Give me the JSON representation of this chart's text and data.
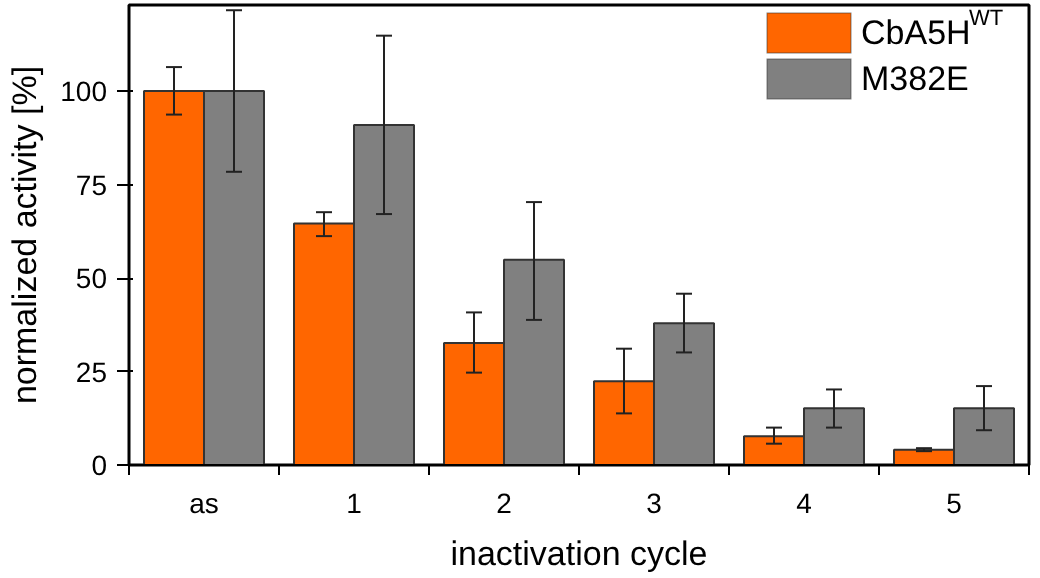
{
  "chart_data": {
    "type": "bar",
    "xlabel": "inactivation cycle",
    "ylabel": "normalized activity [%]",
    "categories": [
      "as",
      "1",
      "2",
      "3",
      "4",
      "5"
    ],
    "series": [
      {
        "name": "CbA5H$^{WT}$",
        "color": "#ff6600",
        "values": [
          100,
          64.6,
          32.6,
          22.4,
          7.7,
          4.1
        ],
        "errors": [
          [
            93.7,
            106.4
          ],
          [
            61.2,
            67.6
          ],
          [
            24.7,
            40.8
          ],
          [
            13.8,
            31.1
          ],
          [
            5.7,
            10.0
          ],
          [
            3.7,
            4.5
          ]
        ]
      },
      {
        "name": "M382E",
        "color": "#808080",
        "values": [
          100,
          90.9,
          54.9,
          37.9,
          15.2,
          15.2
        ],
        "errors": [
          [
            78.4,
            121.6
          ],
          [
            67.1,
            114.8
          ],
          [
            38.8,
            70.3
          ],
          [
            30.1,
            45.8
          ],
          [
            10.0,
            20.2
          ],
          [
            9.3,
            21.1
          ]
        ]
      }
    ],
    "ylim": [
      0,
      123
    ],
    "yticks": [
      0,
      25,
      50,
      75,
      100
    ],
    "grid": false,
    "legend": "top right"
  }
}
